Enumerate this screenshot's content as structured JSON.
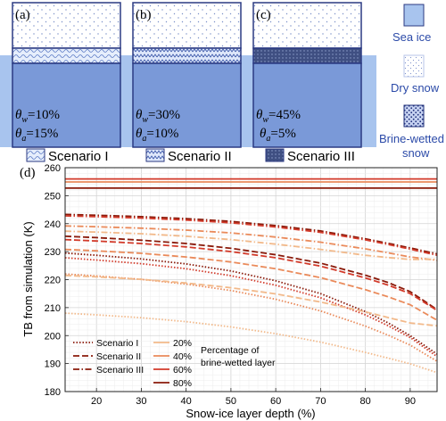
{
  "schematic": {
    "panels": [
      {
        "letter": "(a)",
        "theta_w": "θ",
        "w_sub": "w",
        "w_val": "=10%",
        "a_sub": "a",
        "a_val": "=15%",
        "scenario": "Scenario I",
        "pattern": "wave-light"
      },
      {
        "letter": "(b)",
        "theta_w": "θ",
        "w_sub": "w",
        "w_val": "=30%",
        "a_sub": "a",
        "a_val": "=10%",
        "scenario": "Scenario II",
        "pattern": "zigzag"
      },
      {
        "letter": "(c)",
        "theta_w": "θ",
        "w_sub": "w",
        "w_val": "=45%",
        "a_sub": "a",
        "a_val": "=5%",
        "scenario": "Scenario III",
        "pattern": "dense"
      }
    ],
    "legend": {
      "sea_ice": "Sea ice",
      "dry_snow": "Dry snow",
      "brine_wetted_1": "Brine-wetted",
      "brine_wetted_2": "snow"
    },
    "colors": {
      "sea_ice": "#7a99d8",
      "sea_ice_light": "#a8c4ee",
      "border": "#2b3a82",
      "text_blue": "#2b4aa8"
    }
  },
  "chart_data": {
    "type": "line",
    "panel_letter": "(d)",
    "xlabel": "Snow-ice layer depth (%)",
    "ylabel": "TB from simulation (K)",
    "xlim": [
      13,
      96
    ],
    "ylim": [
      180,
      260
    ],
    "xticks": [
      "20",
      "30",
      "40",
      "50",
      "60",
      "70",
      "80",
      "90"
    ],
    "yticks": [
      "180",
      "190",
      "200",
      "210",
      "220",
      "230",
      "240",
      "250",
      "260"
    ],
    "grid": true,
    "legend_location": "bottom-left",
    "legend_scenarios": [
      {
        "name": "Scenario I",
        "style": "dotted"
      },
      {
        "name": "Scenario II",
        "style": "dashed"
      },
      {
        "name": "Scenario III",
        "style": "dashdot"
      }
    ],
    "legend_percentages": [
      {
        "name": "20%",
        "color": "#f2b98a"
      },
      {
        "name": "40%",
        "color": "#ea8a5a"
      },
      {
        "name": "60%",
        "color": "#d23a2a"
      },
      {
        "name": "80%",
        "color": "#8a1a0a"
      }
    ],
    "legend_note_1": "Percentage of",
    "legend_note_2": "brine-wetted layer",
    "x": [
      13,
      20,
      30,
      40,
      50,
      60,
      70,
      80,
      85,
      90,
      96
    ],
    "series": [
      {
        "scenario": "Scenario III",
        "pct": "80%",
        "style": "dashdot",
        "color": "#8a1a0a",
        "values": [
          243.3,
          243.0,
          242.5,
          241.8,
          240.8,
          239.3,
          237.4,
          234.6,
          233.0,
          231.3,
          229.2
        ]
      },
      {
        "scenario": "Scenario II",
        "pct": "80%",
        "style": "dashed",
        "color": "#8a1a0a",
        "values": [
          235.5,
          235.0,
          234.1,
          232.9,
          231.2,
          228.9,
          225.9,
          221.6,
          219.0,
          215.7,
          209.3
        ]
      },
      {
        "scenario": "Scenario I",
        "pct": "80%",
        "style": "dotted",
        "color": "#8a1a0a",
        "values": [
          229.5,
          228.7,
          227.4,
          225.6,
          223.1,
          219.6,
          215.0,
          208.6,
          204.6,
          200.0,
          193.4
        ]
      },
      {
        "scenario": "Scenario III",
        "pct": "60%",
        "style": "dashdot",
        "color": "#d23a2a",
        "values": [
          242.8,
          242.5,
          242.0,
          241.3,
          240.3,
          238.8,
          236.9,
          234.2,
          232.6,
          230.9,
          228.7
        ]
      },
      {
        "scenario": "Scenario II",
        "pct": "60%",
        "style": "dashed",
        "color": "#d23a2a",
        "values": [
          234.3,
          233.8,
          232.9,
          231.7,
          230.0,
          227.8,
          224.8,
          220.6,
          218.1,
          215.0,
          209.0
        ]
      },
      {
        "scenario": "Scenario I",
        "pct": "60%",
        "style": "dotted",
        "color": "#d23a2a",
        "values": [
          227.8,
          227.0,
          225.7,
          223.9,
          221.4,
          218.0,
          213.5,
          207.4,
          203.6,
          199.3,
          192.5
        ]
      },
      {
        "scenario": "Scenario III",
        "pct": "40%",
        "style": "dashdot",
        "color": "#ea8a5a",
        "values": [
          239.2,
          238.9,
          238.4,
          237.7,
          236.7,
          235.2,
          233.4,
          231.0,
          229.6,
          228.1,
          226.9
        ]
      },
      {
        "scenario": "Scenario II",
        "pct": "40%",
        "style": "dashed",
        "color": "#ea8a5a",
        "values": [
          230.8,
          230.3,
          229.4,
          228.1,
          226.3,
          223.9,
          220.7,
          216.4,
          213.9,
          211.0,
          205.5
        ]
      },
      {
        "scenario": "Scenario I",
        "pct": "40%",
        "style": "dotted",
        "color": "#ea8a5a",
        "values": [
          222.0,
          221.3,
          220.1,
          218.4,
          216.1,
          213.0,
          208.8,
          203.4,
          200.2,
          196.6,
          190.8
        ]
      },
      {
        "scenario": "Scenario III",
        "pct": "20%",
        "style": "dashdot",
        "color": "#f2b98a",
        "values": [
          237.3,
          237.0,
          236.4,
          235.5,
          234.3,
          232.7,
          230.8,
          228.7,
          227.9,
          227.2,
          227.3
        ]
      },
      {
        "scenario": "Scenario II",
        "pct": "20%",
        "style": "dashed",
        "color": "#f2b98a",
        "values": [
          221.5,
          221.0,
          220.1,
          218.8,
          217.1,
          214.9,
          212.0,
          208.5,
          206.5,
          204.5,
          203.5
        ]
      },
      {
        "scenario": "Scenario I",
        "pct": "20%",
        "style": "dotted",
        "color": "#f2b98a",
        "values": [
          208.0,
          207.4,
          206.4,
          205.0,
          203.1,
          200.7,
          197.7,
          194.0,
          192.0,
          189.9,
          186.8
        ]
      },
      {
        "scenario": "",
        "pct": "60%",
        "style": "solid",
        "color": "#d23a2a",
        "values": [
          256.0,
          256.0,
          256.0,
          256.0,
          256.0,
          256.0,
          256.0,
          256.0,
          256.0,
          256.0,
          256.0
        ]
      },
      {
        "scenario": "",
        "pct": "40%",
        "style": "solid",
        "color": "#ea8a5a",
        "values": [
          254.9,
          254.9,
          254.9,
          254.9,
          254.9,
          254.9,
          254.9,
          254.9,
          254.9,
          254.9,
          254.9
        ]
      },
      {
        "scenario": "",
        "pct": "80%",
        "style": "solid",
        "color": "#8a1a0a",
        "values": [
          252.7,
          252.7,
          252.7,
          252.7,
          252.7,
          252.7,
          252.7,
          252.7,
          252.7,
          252.7,
          252.7
        ]
      }
    ]
  }
}
